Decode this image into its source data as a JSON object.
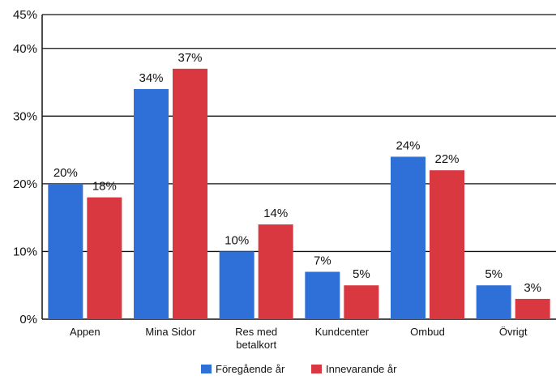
{
  "chart_data": {
    "type": "bar",
    "title": "",
    "xlabel": "",
    "ylabel": "",
    "ylim": [
      0,
      45
    ],
    "yticks": [
      0,
      10,
      20,
      30,
      40,
      45
    ],
    "ytick_labels": [
      "0%",
      "10%",
      "20%",
      "30%",
      "40%",
      "45%"
    ],
    "grid": true,
    "legend_position": "bottom",
    "categories": [
      [
        "Appen"
      ],
      [
        "Mina Sidor"
      ],
      [
        "Res med",
        "betalkort"
      ],
      [
        "Kundcenter"
      ],
      [
        "Ombud"
      ],
      [
        "Övrigt"
      ]
    ],
    "series": [
      {
        "name": "Föregående år",
        "color": "#2e6fd8",
        "values": [
          20,
          34,
          10,
          7,
          24,
          5
        ],
        "labels": [
          "20%",
          "34%",
          "10%",
          "7%",
          "24%",
          "5%"
        ]
      },
      {
        "name": "Innevarande år",
        "color": "#d93840",
        "values": [
          18,
          37,
          14,
          5,
          22,
          3
        ],
        "labels": [
          "18%",
          "37%",
          "14%",
          "5%",
          "22%",
          "3%"
        ]
      }
    ]
  }
}
